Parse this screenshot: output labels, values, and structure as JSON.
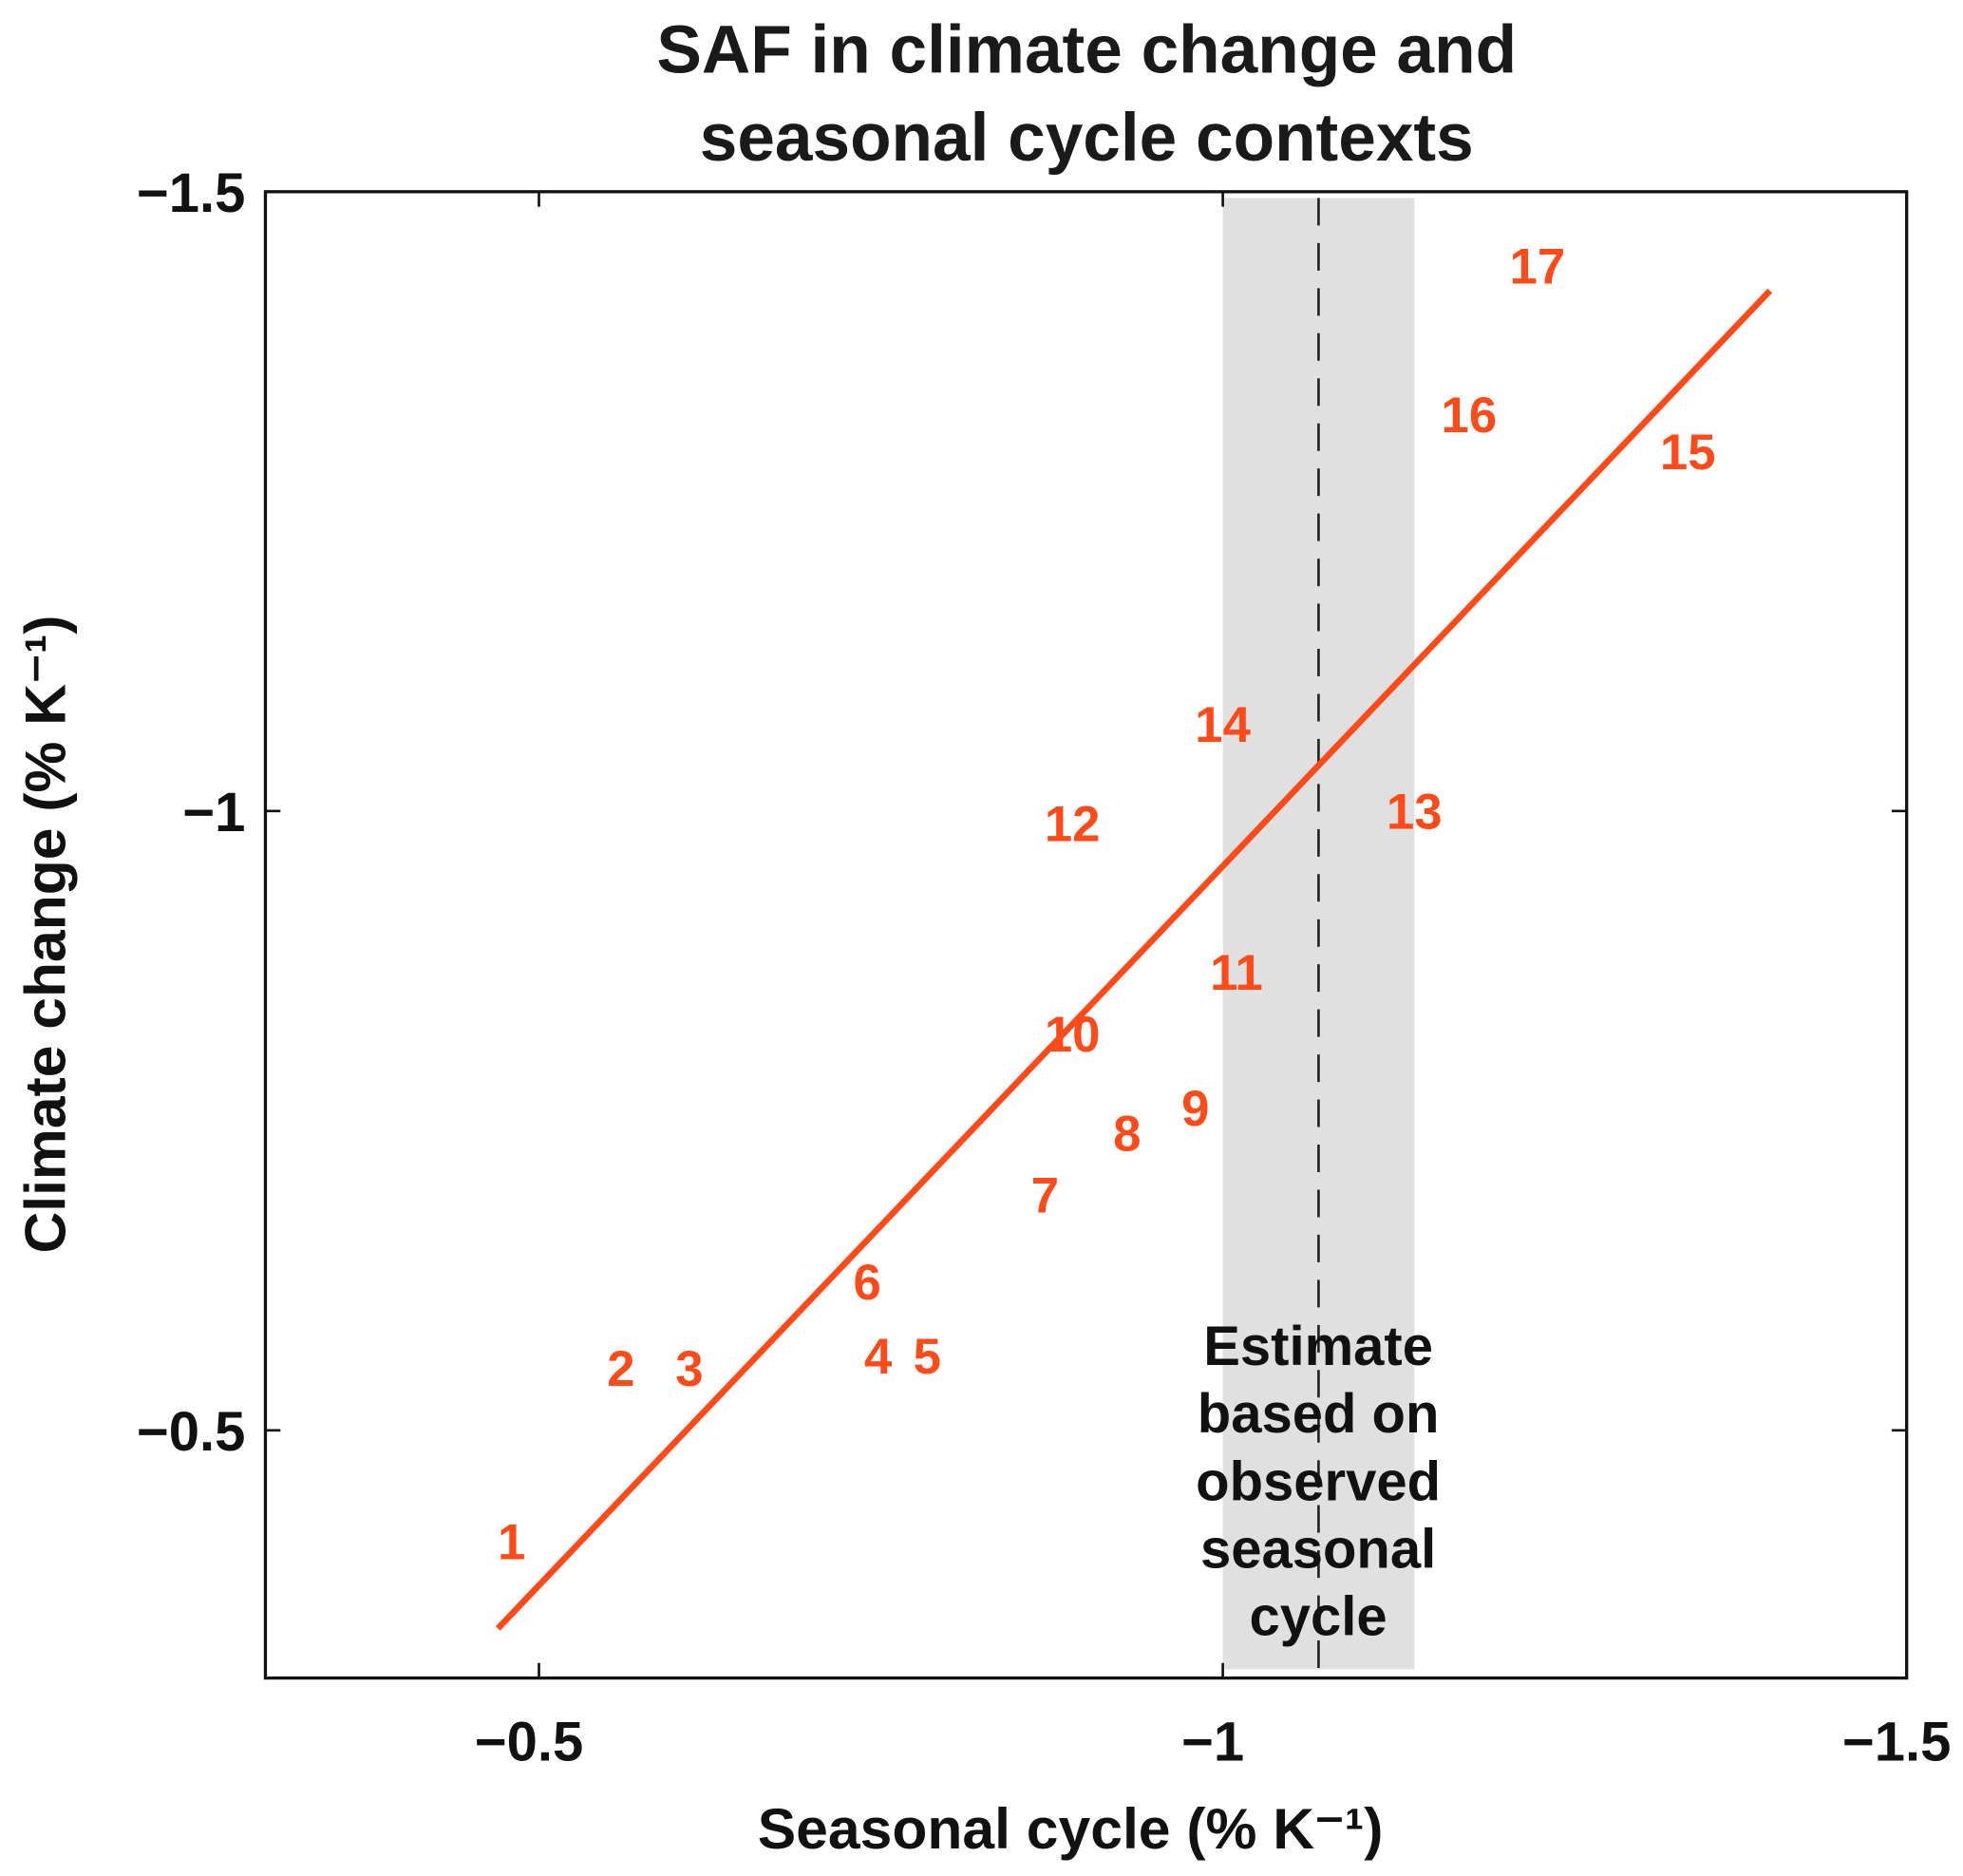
{
  "chart_data": {
    "type": "scatter",
    "title_lines": [
      "SAF in climate change and",
      "seasonal cycle contexts"
    ],
    "xlabel": "Seasonal cycle (% K⁻¹)",
    "ylabel": "Climate change (% K⁻¹)",
    "xlim": [
      -0.3,
      -1.5
    ],
    "ylim": [
      -0.3,
      -1.5
    ],
    "x_reversed": true,
    "y_reversed": true,
    "grid": false,
    "xticks": [
      {
        "value": -0.5,
        "label": "−0.5"
      },
      {
        "value": -1,
        "label": "−1"
      },
      {
        "value": -1.5,
        "label": "−1.5"
      }
    ],
    "yticks": [
      {
        "value": -0.5,
        "label": "−0.5"
      },
      {
        "value": -1,
        "label": "−1"
      },
      {
        "value": -1.5,
        "label": "−1.5"
      }
    ],
    "marker": "numeric labels",
    "points": [
      {
        "label": "1",
        "x": -0.48,
        "y": -0.41
      },
      {
        "label": "2",
        "x": -0.56,
        "y": -0.55
      },
      {
        "label": "3",
        "x": -0.61,
        "y": -0.55
      },
      {
        "label": "4",
        "x": -0.76,
        "y": -0.56
      },
      {
        "label": "5",
        "x": -0.77,
        "y": -0.56
      },
      {
        "label": "6",
        "x": -0.74,
        "y": -0.62
      },
      {
        "label": "7",
        "x": -0.87,
        "y": -0.69
      },
      {
        "label": "8",
        "x": -0.93,
        "y": -0.74
      },
      {
        "label": "9",
        "x": -0.98,
        "y": -0.76
      },
      {
        "label": "10",
        "x": -0.89,
        "y": -0.82
      },
      {
        "label": "11",
        "x": -1.01,
        "y": -0.87
      },
      {
        "label": "12",
        "x": -0.89,
        "y": -0.99
      },
      {
        "label": "13",
        "x": -1.14,
        "y": -1.0
      },
      {
        "label": "14",
        "x": -1.0,
        "y": -1.07
      },
      {
        "label": "15",
        "x": -1.34,
        "y": -1.29
      },
      {
        "label": "16",
        "x": -1.18,
        "y": -1.32
      },
      {
        "label": "17",
        "x": -1.23,
        "y": -1.44
      }
    ],
    "fit_line": {
      "x": [
        -0.47,
        -1.4
      ],
      "y": [
        -0.34,
        -1.42
      ]
    },
    "observed_estimate": {
      "value": -1.07,
      "range": [
        -1.0,
        -1.14
      ]
    },
    "annotation_lines": [
      "Estimate",
      "based on",
      "observed",
      "seasonal",
      "cycle"
    ],
    "colors": {
      "points": "#ff4a1a",
      "fit_line": "#ff4a1a",
      "band": "#e0e0e0",
      "dashed_line": "#222222"
    }
  }
}
